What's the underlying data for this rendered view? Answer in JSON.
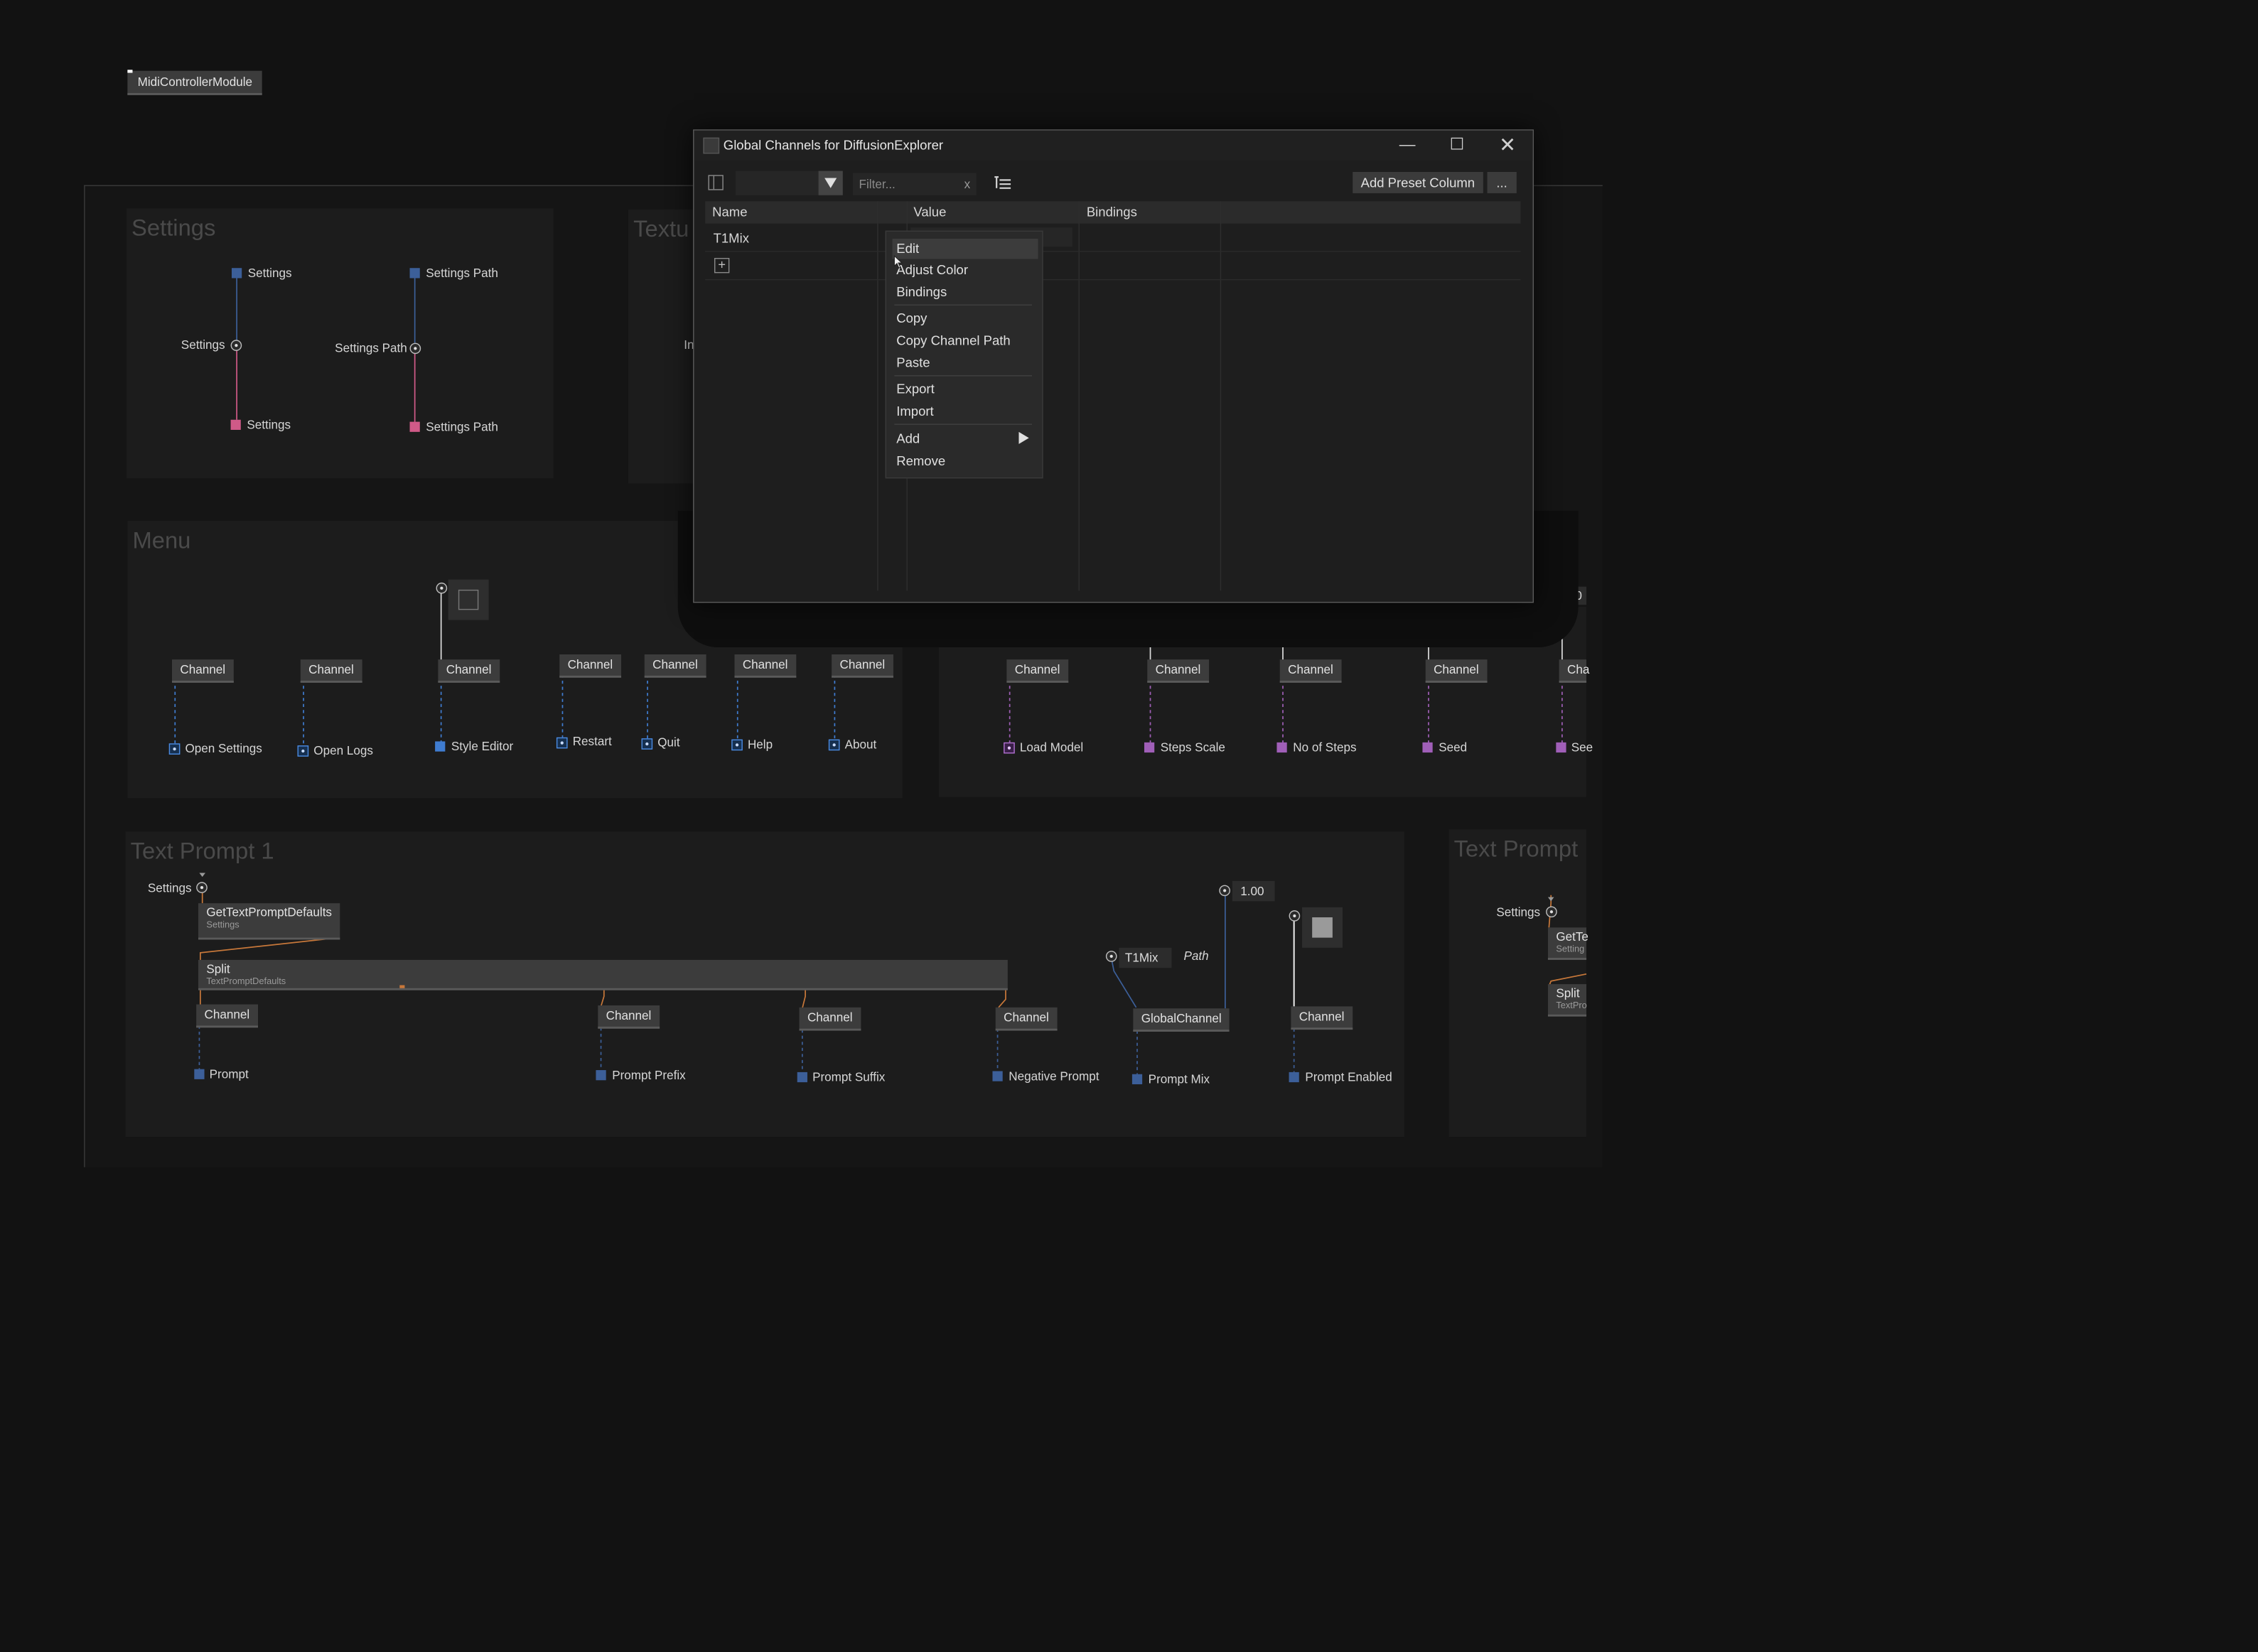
{
  "top_node": {
    "label": "MidiControllerModule"
  },
  "settings_region": {
    "title": "Settings",
    "out_settings": "Settings",
    "out_settings_path": "Settings Path",
    "mid_settings": "Settings",
    "mid_settings_path": "Settings Path",
    "in_settings": "Settings",
    "in_settings_path": "Settings Path"
  },
  "texture_region": {
    "title": "Textu",
    "partial_label": "In"
  },
  "menu_region": {
    "title": "Menu",
    "channel_label": "Channel",
    "items": [
      {
        "label": "Open Settings"
      },
      {
        "label": "Open Logs"
      },
      {
        "label": "Style Editor"
      },
      {
        "label": "Restart"
      },
      {
        "label": "Quit"
      },
      {
        "label": "Help"
      },
      {
        "label": "About"
      }
    ]
  },
  "model_region": {
    "channel_label": "Channel",
    "items": [
      {
        "label": "Load Model"
      },
      {
        "label": "Steps Scale"
      },
      {
        "label": "No of Steps"
      },
      {
        "label": "Seed"
      },
      {
        "label": "See"
      }
    ],
    "partial_value": "0",
    "partial_channel": "Cha"
  },
  "text_prompt_1": {
    "title": "Text Prompt 1",
    "settings_label": "Settings",
    "defaults_node": {
      "label": "GetTextPromptDefaults",
      "sub": "Settings"
    },
    "split_node": {
      "label": "Split",
      "sub": "TextPromptDefaults"
    },
    "channel_label": "Channel",
    "outputs": [
      {
        "label": "Prompt"
      },
      {
        "label": "Prompt Prefix"
      },
      {
        "label": "Prompt Suffix"
      },
      {
        "label": "Negative Prompt"
      }
    ],
    "t1mix_label": "T1Mix",
    "path_label": "Path",
    "mix_value": "1.00",
    "global_channel": "GlobalChannel",
    "prompt_mix": "Prompt Mix",
    "prompt_enabled": "Prompt Enabled"
  },
  "text_prompt_2": {
    "title": "Text Prompt",
    "settings_label": "Settings",
    "node_a": {
      "label": "GetTe",
      "sub": "Setting"
    },
    "node_b": {
      "label": "Split",
      "sub": "TextPro"
    }
  },
  "window": {
    "title": "Global Channels for DiffusionExplorer",
    "filter_placeholder": "Filter...",
    "filter_clear": "x",
    "add_preset_column": "Add Preset Column",
    "more_button": "...",
    "columns": [
      "Name",
      "Value",
      "Bindings"
    ],
    "rows": [
      {
        "name": "T1Mix"
      }
    ]
  },
  "context_menu": {
    "items": [
      "Edit",
      "Adjust Color",
      "Bindings",
      "Copy",
      "Copy Channel Path",
      "Paste",
      "Export",
      "Import",
      "Add",
      "Remove"
    ]
  },
  "colors": {
    "background": "#121212",
    "region": "#1c1c1c",
    "blue_port": "#3f7cd0",
    "pink_port": "#d05a88",
    "purple_port": "#a05fb8",
    "orange_wire": "#c8783a"
  }
}
